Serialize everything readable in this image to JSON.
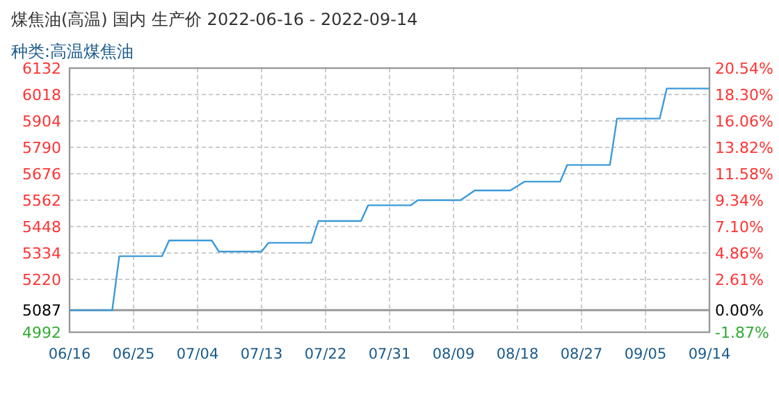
{
  "chart_data": {
    "type": "line",
    "title": "煤焦油(高温) 国内 生产价 2022-06-16 - 2022-09-14",
    "subtitle": "种类:高温煤焦油",
    "x": [
      "2022-06-16",
      "2022-06-22",
      "2022-06-23",
      "2022-06-29",
      "2022-06-30",
      "2022-07-06",
      "2022-07-07",
      "2022-07-13",
      "2022-07-14",
      "2022-07-20",
      "2022-07-21",
      "2022-07-27",
      "2022-07-28",
      "2022-08-03",
      "2022-08-04",
      "2022-08-10",
      "2022-08-12",
      "2022-08-17",
      "2022-08-19",
      "2022-08-24",
      "2022-08-25",
      "2022-08-31",
      "2022-09-01",
      "2022-09-07",
      "2022-09-08",
      "2022-09-14"
    ],
    "series": [
      {
        "color": "#3a9ad9",
        "values": [
          5087,
          5087,
          5320,
          5320,
          5388,
          5388,
          5340,
          5340,
          5378,
          5378,
          5472,
          5472,
          5540,
          5540,
          5562,
          5562,
          5604,
          5604,
          5642,
          5642,
          5714,
          5714,
          5914,
          5914,
          6044,
          6044
        ]
      }
    ],
    "xlim": [
      "2022-06-16",
      "2022-09-14"
    ],
    "xticks": [
      {
        "value": "2022-06-16",
        "label": "06/16"
      },
      {
        "value": "2022-06-25",
        "label": "06/25"
      },
      {
        "value": "2022-07-04",
        "label": "07/04"
      },
      {
        "value": "2022-07-13",
        "label": "07/13"
      },
      {
        "value": "2022-07-22",
        "label": "07/22"
      },
      {
        "value": "2022-07-31",
        "label": "07/31"
      },
      {
        "value": "2022-08-09",
        "label": "08/09"
      },
      {
        "value": "2022-08-18",
        "label": "08/18"
      },
      {
        "value": "2022-08-27",
        "label": "08/27"
      },
      {
        "value": "2022-09-05",
        "label": "09/05"
      },
      {
        "value": "2022-09-14",
        "label": "09/14"
      }
    ],
    "ylim": [
      4992,
      6132
    ],
    "yticks": [
      4992,
      5087,
      5220,
      5334,
      5448,
      5562,
      5676,
      5790,
      5904,
      6018,
      6132
    ],
    "y2lim": [
      -1.87,
      20.54
    ],
    "y2ticks": [
      {
        "value": -1.87,
        "label": "-1.87%"
      },
      {
        "value": 0,
        "label": "0.00%"
      },
      {
        "value": 2.61,
        "label": "2.61%"
      },
      {
        "value": 4.86,
        "label": "4.86%"
      },
      {
        "value": 7.1,
        "label": "7.10%"
      },
      {
        "value": 9.34,
        "label": "9.34%"
      },
      {
        "value": 11.58,
        "label": "11.58%"
      },
      {
        "value": 13.82,
        "label": "13.82%"
      },
      {
        "value": 16.06,
        "label": "16.06%"
      },
      {
        "value": 18.3,
        "label": "18.30%"
      },
      {
        "value": 20.54,
        "label": "20.54%"
      }
    ],
    "ref_lines": [
      {
        "axis": "y",
        "value": 5087,
        "color": "#999999"
      }
    ],
    "grid": true
  }
}
